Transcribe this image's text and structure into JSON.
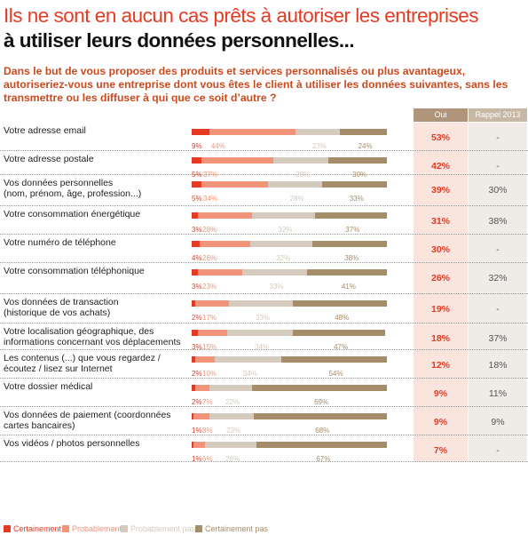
{
  "title_line1": "Ils ne sont en aucun cas prêts à autoriser les entreprises",
  "title_line2": "à utiliser leurs données personnelles...",
  "question": "Dans le but de vous proposer des produits et services personnalisés ou plus avantageux, autoriseriez-vous une entreprise dont vous êtes le client à utiliser les données suivantes, sans les transmettre ou les diffuser à qui que ce soit d’autre ?",
  "columns": {
    "oui": "Oui",
    "rappel": "Rappel 2013"
  },
  "colors": {
    "certainement": "#e63a23",
    "probablement": "#f29479",
    "probablement_pas": "#d4cbbe",
    "certainement_pas": "#a68d69"
  },
  "chart_data": {
    "type": "bar",
    "stacked": true,
    "orientation": "horizontal",
    "legend_position": "bottom",
    "legend": [
      "Certainement",
      "Probablement",
      "Probablement pas",
      "Certainement pas"
    ],
    "rows": [
      {
        "label": "Votre adresse email",
        "values": [
          9,
          44,
          23,
          24
        ],
        "labels": [
          "9%",
          "44%",
          "23%",
          "24%"
        ],
        "oui": "53%",
        "rappel": "-"
      },
      {
        "label": "Votre adresse postale",
        "values": [
          5,
          37,
          28,
          30
        ],
        "labels": [
          "5%",
          "37%",
          "28%",
          "30%"
        ],
        "oui": "42%",
        "rappel": "-"
      },
      {
        "label": "Vos données personnelles\n(nom, prénom, âge, profession...)",
        "values": [
          5,
          34,
          28,
          33
        ],
        "labels": [
          "5%",
          "34%",
          "28%",
          "33%"
        ],
        "oui": "39%",
        "rappel": "30%"
      },
      {
        "label": "Votre consommation énergétique",
        "values": [
          3,
          28,
          32,
          37
        ],
        "labels": [
          "3%",
          "28%",
          "32%",
          "37%"
        ],
        "oui": "31%",
        "rappel": "38%"
      },
      {
        "label": "Votre numéro de téléphone",
        "values": [
          4,
          26,
          32,
          38
        ],
        "labels": [
          "4%",
          "26%",
          "32%",
          "38%"
        ],
        "oui": "30%",
        "rappel": "-"
      },
      {
        "label": "Votre consommation téléphonique",
        "values": [
          3,
          23,
          33,
          41
        ],
        "labels": [
          "3%",
          "23%",
          "33%",
          "41%"
        ],
        "oui": "26%",
        "rappel": "32%"
      },
      {
        "label": "Vos données de transaction\n(historique de vos achats)",
        "values": [
          2,
          17,
          33,
          48
        ],
        "labels": [
          "2%",
          "17%",
          "33%",
          "48%"
        ],
        "oui": "19%",
        "rappel": "-"
      },
      {
        "label": "Votre localisation géographique, des informations concernant vos déplacements",
        "values": [
          3,
          15,
          34,
          47
        ],
        "labels": [
          "3%",
          "15%",
          "34%",
          "47%"
        ],
        "oui": "18%",
        "rappel": "37%"
      },
      {
        "label": "Les contenus (...) que vous regardez / écoutez / lisez sur Internet",
        "values": [
          2,
          10,
          34,
          54
        ],
        "labels": [
          "2%",
          "10%",
          "34%",
          "54%"
        ],
        "oui": "12%",
        "rappel": "18%"
      },
      {
        "label": "Votre dossier médical",
        "values": [
          2,
          7,
          22,
          69
        ],
        "labels": [
          "2%",
          "7%",
          "22%",
          "69%"
        ],
        "oui": "9%",
        "rappel": "11%"
      },
      {
        "label": "Vos données de paiement (coordonnées cartes bancaires)",
        "values": [
          1,
          8,
          23,
          68
        ],
        "labels": [
          "1%",
          "8%",
          "23%",
          "68%"
        ],
        "oui": "9%",
        "rappel": "9%"
      },
      {
        "label": "Vos vidéos / photos personnelles",
        "values": [
          1,
          6,
          26,
          67
        ],
        "labels": [
          "1%",
          "6%",
          "26%",
          "67%"
        ],
        "oui": "7%",
        "rappel": "-"
      }
    ]
  }
}
